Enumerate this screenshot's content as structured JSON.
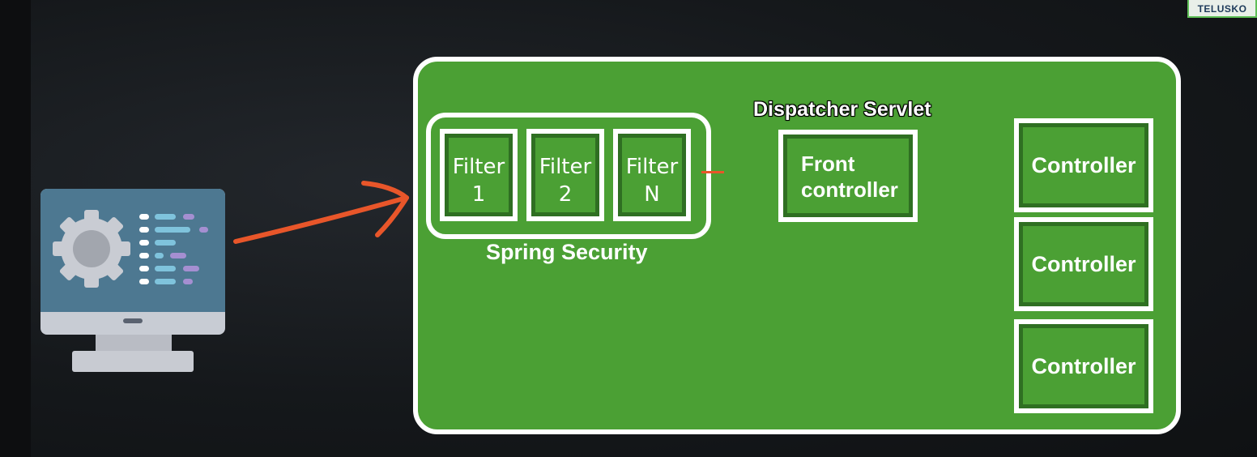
{
  "logo": {
    "text": "TELUSKO"
  },
  "diagram": {
    "security_label": "Spring Security",
    "filters": [
      {
        "line1": "Filter",
        "line2": "1"
      },
      {
        "line1": "Filter",
        "line2": "2"
      },
      {
        "line1": "Filter",
        "line2": "N"
      }
    ],
    "dispatcher_label": "Dispatcher Servlet",
    "front_controller": {
      "line1": "Front",
      "line2": "controller"
    },
    "controllers": [
      "Controller",
      "Controller",
      "Controller"
    ]
  },
  "colors": {
    "container_green": "#4ba034",
    "arrow_orange": "#e8562a",
    "background": "#15181b"
  },
  "icons": {
    "client": "computer-settings-icon"
  }
}
